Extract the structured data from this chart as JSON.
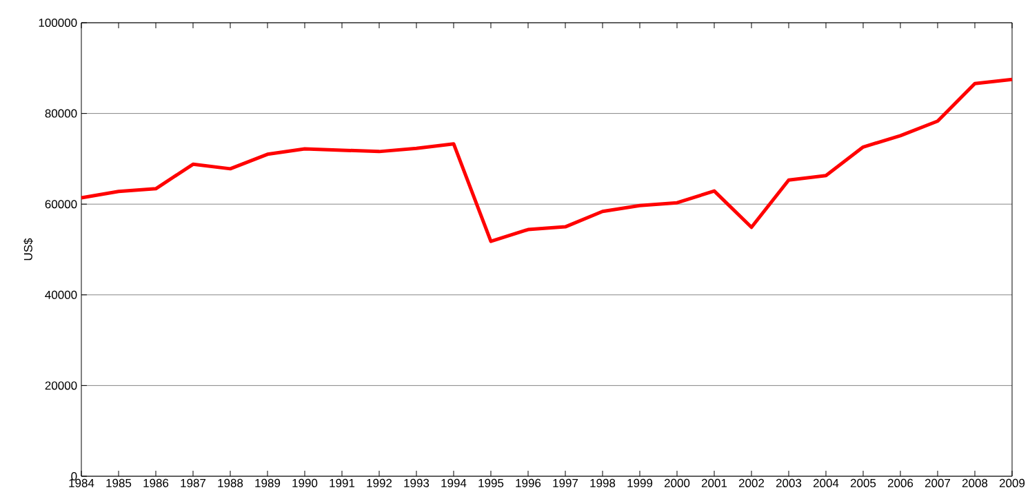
{
  "chart_data": {
    "type": "line",
    "ylabel": "US$",
    "x": [
      1984,
      1985,
      1986,
      1987,
      1988,
      1989,
      1990,
      1991,
      1992,
      1993,
      1994,
      1995,
      1996,
      1997,
      1998,
      1999,
      2000,
      2001,
      2002,
      2003,
      2004,
      2005,
      2006,
      2007,
      2008,
      2009
    ],
    "series": [
      {
        "color": "#ff0000",
        "values": [
          61400,
          62800,
          63400,
          68800,
          67800,
          71000,
          72200,
          71900,
          71600,
          72300,
          73300,
          51800,
          54400,
          55000,
          58400,
          59700,
          60300,
          62900,
          54900,
          65300,
          66300,
          72600,
          75100,
          78300,
          86600,
          87500
        ]
      }
    ],
    "xlim": [
      1984,
      2009
    ],
    "xticks": [
      1984,
      1985,
      1986,
      1987,
      1988,
      1989,
      1990,
      1991,
      1992,
      1993,
      1994,
      1995,
      1996,
      1997,
      1998,
      1999,
      2000,
      2001,
      2002,
      2003,
      2004,
      2005,
      2006,
      2007,
      2008,
      2009
    ],
    "ylim": [
      0,
      100000
    ],
    "yticks": [
      0,
      20000,
      40000,
      60000,
      80000,
      100000
    ],
    "grid": "y"
  }
}
